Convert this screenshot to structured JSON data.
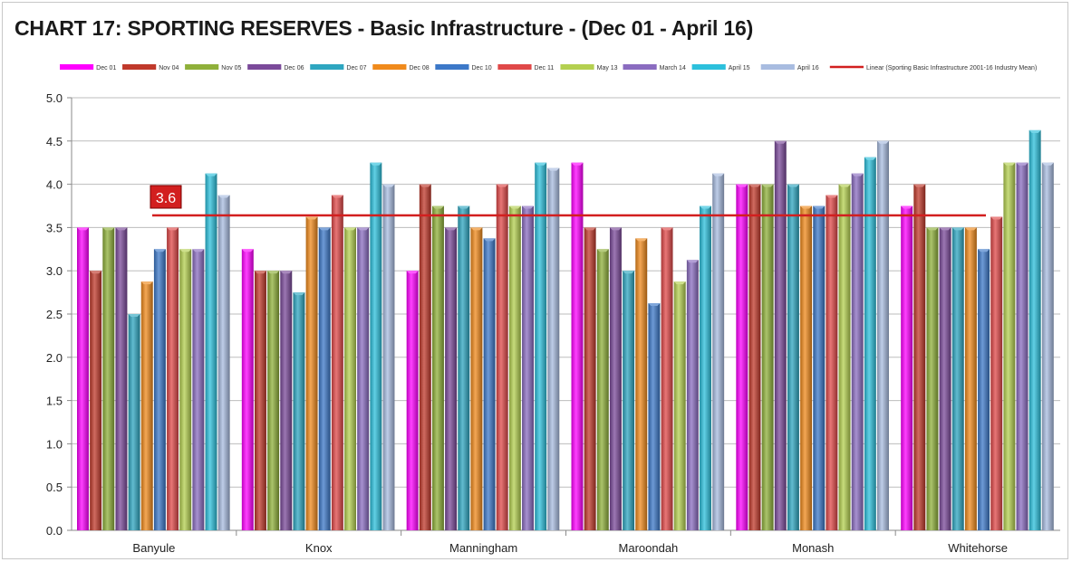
{
  "chart_data": {
    "type": "bar",
    "title": "CHART 17:  SPORTING RESERVES - Basic Infrastructure - (Dec 01 - April 16)",
    "xlabel": "",
    "ylabel": "",
    "ylim": [
      0,
      5
    ],
    "yticks": [
      "0.0",
      "0.5",
      "1.0",
      "1.5",
      "2.0",
      "2.5",
      "3.0",
      "3.5",
      "4.0",
      "4.5",
      "5.0"
    ],
    "grid": "horizontal",
    "legend_position": "top",
    "categories": [
      "Banyule",
      "Knox",
      "Manningham",
      "Maroondah",
      "Monash",
      "Whitehorse"
    ],
    "series": [
      {
        "name": "Dec 01",
        "color": "#ff00ff",
        "values": [
          3.5,
          3.25,
          3.0,
          4.25,
          4.0,
          3.75
        ]
      },
      {
        "name": "Nov 04",
        "color": "#c0392b",
        "values": [
          3.0,
          3.0,
          4.0,
          3.5,
          4.0,
          4.0
        ]
      },
      {
        "name": "Nov 05",
        "color": "#8fb03a",
        "values": [
          3.5,
          3.0,
          3.75,
          3.25,
          4.0,
          3.5
        ]
      },
      {
        "name": "Dec 06",
        "color": "#7b4a9a",
        "values": [
          3.5,
          3.0,
          3.5,
          3.5,
          4.5,
          3.5
        ]
      },
      {
        "name": "Dec 07",
        "color": "#2ea6c0",
        "values": [
          2.5,
          2.75,
          3.75,
          3.0,
          4.0,
          3.5
        ]
      },
      {
        "name": "Dec 08",
        "color": "#f08a1c",
        "values": [
          2.875,
          3.625,
          3.5,
          3.375,
          3.75,
          3.5
        ]
      },
      {
        "name": "Dec 10",
        "color": "#3c78c8",
        "values": [
          3.25,
          3.5,
          3.375,
          2.625,
          3.75,
          3.25
        ]
      },
      {
        "name": "Dec 11",
        "color": "#e04848",
        "values": [
          3.5,
          3.875,
          4.0,
          3.5,
          3.875,
          3.625
        ]
      },
      {
        "name": "May 13",
        "color": "#b4d050",
        "values": [
          3.25,
          3.5,
          3.75,
          2.875,
          4.0,
          4.25
        ]
      },
      {
        "name": "March 14",
        "color": "#8a6cc0",
        "values": [
          3.25,
          3.5,
          3.75,
          3.125,
          4.125,
          4.25
        ]
      },
      {
        "name": "April 15",
        "color": "#2cc0dc",
        "values": [
          4.125,
          4.25,
          4.25,
          3.75,
          4.3125,
          4.625
        ]
      },
      {
        "name": "April 16",
        "color": "#a8bce0",
        "values": [
          3.875,
          4.0,
          4.1875,
          4.125,
          4.5,
          4.25
        ]
      }
    ],
    "trend_line": {
      "name": "Linear (Sporting Basic Infrastructure 2001-16 Industry Mean)",
      "value": 3.64,
      "label": "3.6",
      "color": "#d21f1f"
    }
  }
}
